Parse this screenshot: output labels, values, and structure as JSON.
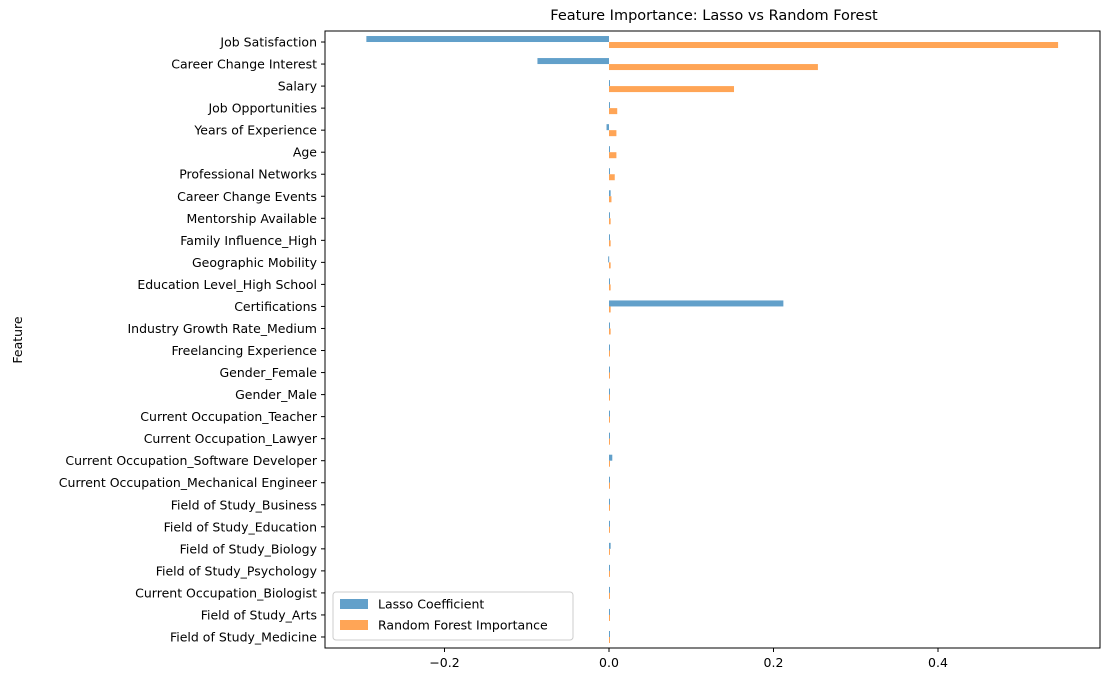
{
  "chart_data": {
    "type": "bar",
    "orientation": "horizontal",
    "title": "Feature Importance: Lasso vs Random Forest",
    "xlabel": "",
    "ylabel": "Feature",
    "xlim": [
      -0.35,
      0.595
    ],
    "xticks": [
      -0.2,
      0.0,
      0.2,
      0.4
    ],
    "xtick_labels": [
      "−0.2",
      "0.0",
      "0.2",
      "0.4"
    ],
    "grid": false,
    "legend_position": "lower-left",
    "categories": [
      "Job Satisfaction",
      "Career Change Interest",
      "Salary",
      "Job Opportunities",
      "Years of Experience",
      "Age",
      "Professional Networks",
      "Career Change Events",
      "Mentorship Available",
      "Family Influence_High",
      "Geographic Mobility",
      "Education Level_High School",
      "Certifications",
      "Industry Growth Rate_Medium",
      "Freelancing Experience",
      "Gender_Female",
      "Gender_Male",
      "Current Occupation_Teacher",
      "Current Occupation_Lawyer",
      "Current Occupation_Software Developer",
      "Current Occupation_Mechanical Engineer",
      "Field of Study_Business",
      "Field of Study_Education",
      "Field of Study_Biology",
      "Field of Study_Psychology",
      "Current Occupation_Biologist",
      "Field of Study_Arts",
      "Field of Study_Medicine"
    ],
    "series": [
      {
        "name": "Lasso Coefficient",
        "color": "#1f77b4",
        "values": [
          -0.295,
          -0.087,
          0.0,
          0.0,
          -0.003,
          0.0,
          0.0,
          0.002,
          0.0,
          0.001,
          -0.001,
          0.0,
          0.212,
          0.0,
          0.0,
          0.0,
          0.001,
          0.0,
          0.0,
          0.004,
          0.0,
          0.0,
          0.0,
          0.002,
          0.0,
          0.0,
          0.0,
          0.001
        ]
      },
      {
        "name": "Random Forest Importance",
        "color": "#ff7f0e",
        "values": [
          0.546,
          0.254,
          0.152,
          0.01,
          0.009,
          0.009,
          0.007,
          0.003,
          0.002,
          0.002,
          0.002,
          0.002,
          0.002,
          0.002,
          0.001,
          0.001,
          0.001,
          0.001,
          0.001,
          0.001,
          0.001,
          0.001,
          0.001,
          0.001,
          0.001,
          0.001,
          0.001,
          0.001
        ]
      }
    ]
  }
}
